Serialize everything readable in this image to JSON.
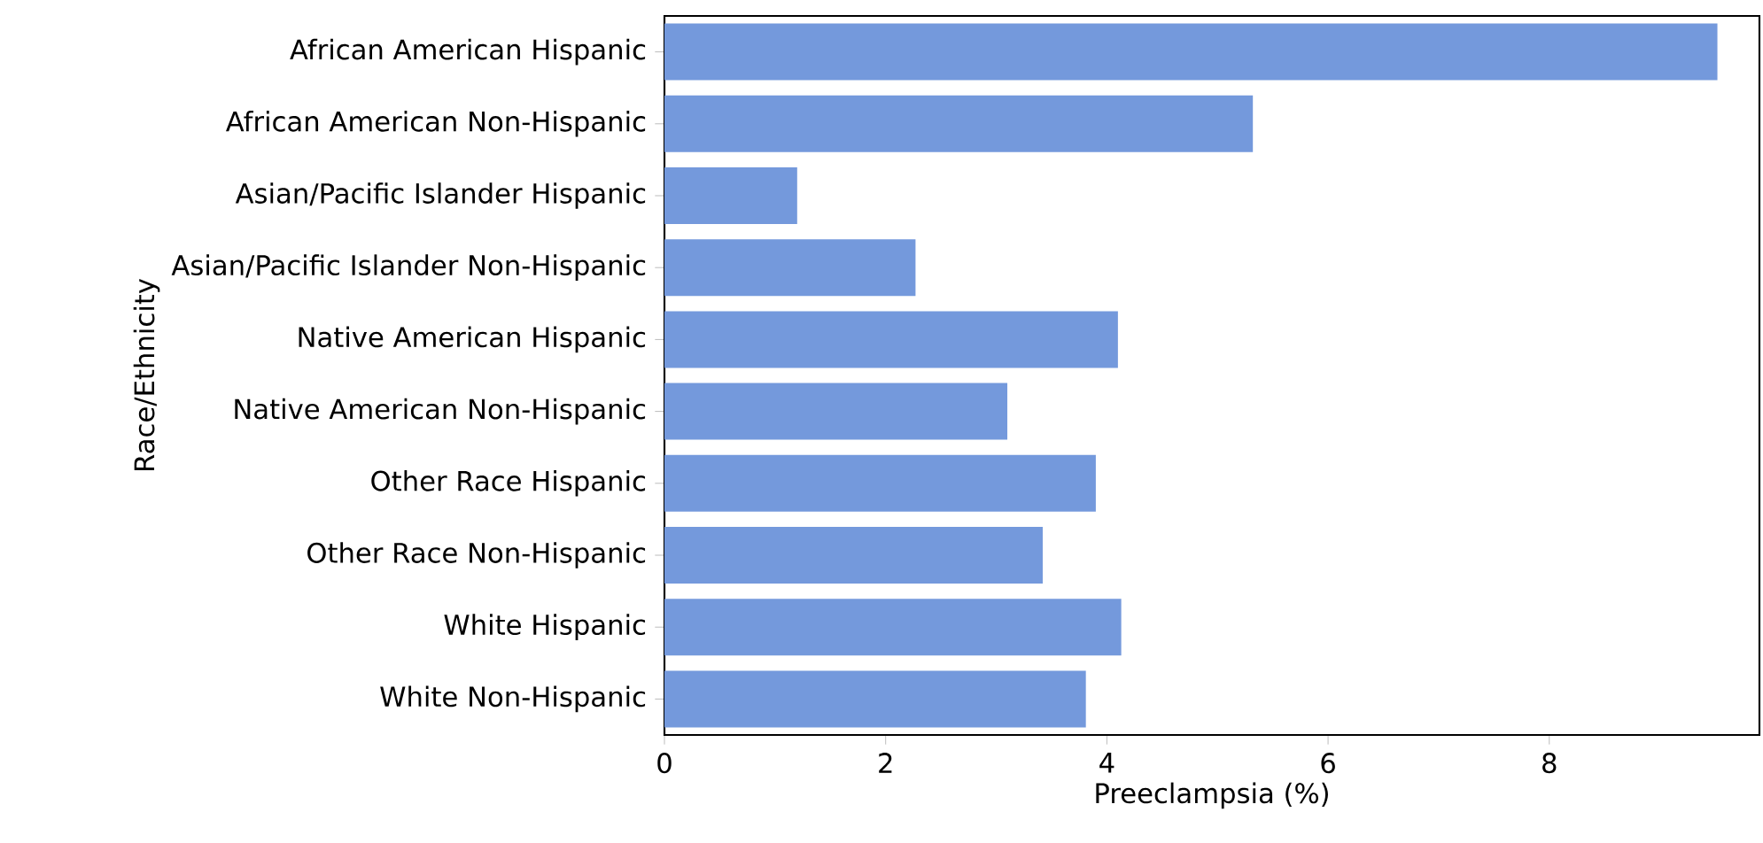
{
  "chart_data": {
    "type": "bar",
    "orientation": "horizontal",
    "xlabel": "Preeclampsia (%)",
    "ylabel": "Race/Ethnicity",
    "categories": [
      "African American Hispanic",
      "African American Non-Hispanic",
      "Asian/Pacific Islander Hispanic",
      "Asian/Pacific Islander Non-Hispanic",
      "Native American Hispanic",
      "Native American Non-Hispanic",
      "Other Race Hispanic",
      "Other Race Non-Hispanic",
      "White Hispanic",
      "White Non-Hispanic"
    ],
    "values": [
      9.52,
      5.32,
      1.2,
      2.27,
      4.1,
      3.1,
      3.9,
      3.42,
      4.13,
      3.81
    ],
    "color": "#7499dc",
    "xlim": [
      0,
      9.9
    ],
    "xticks": [
      0,
      2,
      4,
      6,
      8
    ]
  }
}
